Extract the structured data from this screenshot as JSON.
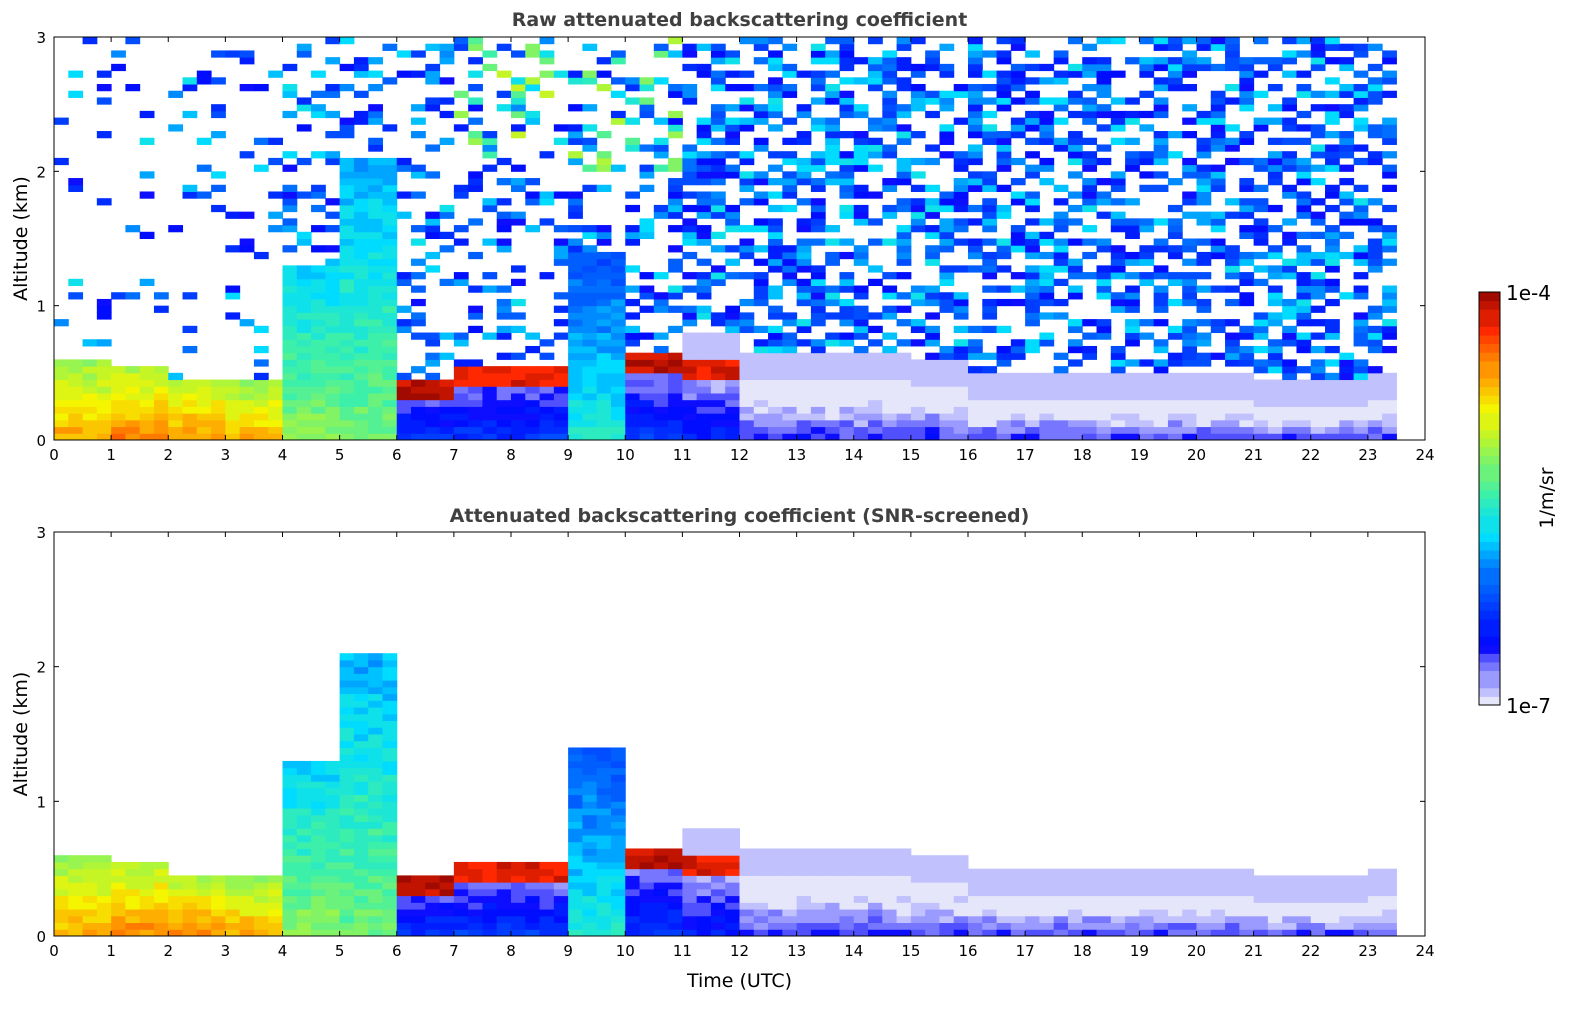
{
  "chart_data": [
    {
      "type": "heatmap",
      "title": "Raw attenuated backscattering coefficient",
      "xlabel": "",
      "ylabel": "Altitude (km)",
      "xlim": [
        0,
        24
      ],
      "ylim": [
        0,
        3
      ],
      "xticks": [
        "0",
        "1",
        "2",
        "3",
        "4",
        "5",
        "6",
        "7",
        "8",
        "9",
        "10",
        "11",
        "12",
        "13",
        "14",
        "15",
        "16",
        "17",
        "18",
        "19",
        "20",
        "21",
        "22",
        "23",
        "24"
      ],
      "yticks": [
        "0",
        "1",
        "2",
        "3"
      ],
      "screened": false
    },
    {
      "type": "heatmap",
      "title": "Attenuated backscattering coefficient (SNR-screened)",
      "xlabel": "Time (UTC)",
      "ylabel": "Altitude (km)",
      "xlim": [
        0,
        24
      ],
      "ylim": [
        0,
        3
      ],
      "xticks": [
        "0",
        "1",
        "2",
        "3",
        "4",
        "5",
        "6",
        "7",
        "8",
        "9",
        "10",
        "11",
        "12",
        "13",
        "14",
        "15",
        "16",
        "17",
        "18",
        "19",
        "20",
        "21",
        "22",
        "23",
        "24"
      ],
      "yticks": [
        "0",
        "1",
        "2",
        "3"
      ],
      "screened": true
    }
  ],
  "profile": {
    "hours": [
      0,
      1,
      2,
      3,
      4,
      5,
      6,
      7,
      8,
      9,
      10,
      11,
      12,
      13,
      14,
      15,
      16,
      17,
      18,
      19,
      20,
      21,
      22,
      23
    ],
    "layer_top_km": [
      0.6,
      0.55,
      0.45,
      0.45,
      1.3,
      2.1,
      0.45,
      0.55,
      0.55,
      1.4,
      0.65,
      0.6,
      0.45,
      0.45,
      0.45,
      0.4,
      0.3,
      0.3,
      0.3,
      0.3,
      0.3,
      0.25,
      0.25,
      0.3
    ],
    "surface_log10_beta": [
      -4.6,
      -4.5,
      -4.5,
      -4.6,
      -5.2,
      -5.3,
      -6.3,
      -6.3,
      -6.3,
      -5.6,
      -6.3,
      -6.4,
      -6.6,
      -6.6,
      -6.6,
      -6.6,
      -6.6,
      -6.6,
      -6.6,
      -6.6,
      -6.6,
      -6.6,
      -6.6,
      -6.6
    ],
    "top_log10_beta": [
      null,
      null,
      null,
      null,
      null,
      null,
      -4.1,
      -4.2,
      -4.2,
      null,
      -4.1,
      -4.2,
      null,
      null,
      null,
      null,
      null,
      null,
      null,
      null,
      null,
      null,
      null,
      null
    ],
    "data_end_hour": 23.5
  },
  "colorbar": {
    "label": "1/m/sr",
    "max_label": "1e-4",
    "min_label": "1e-7",
    "log10_range": [
      -7,
      -4
    ]
  }
}
